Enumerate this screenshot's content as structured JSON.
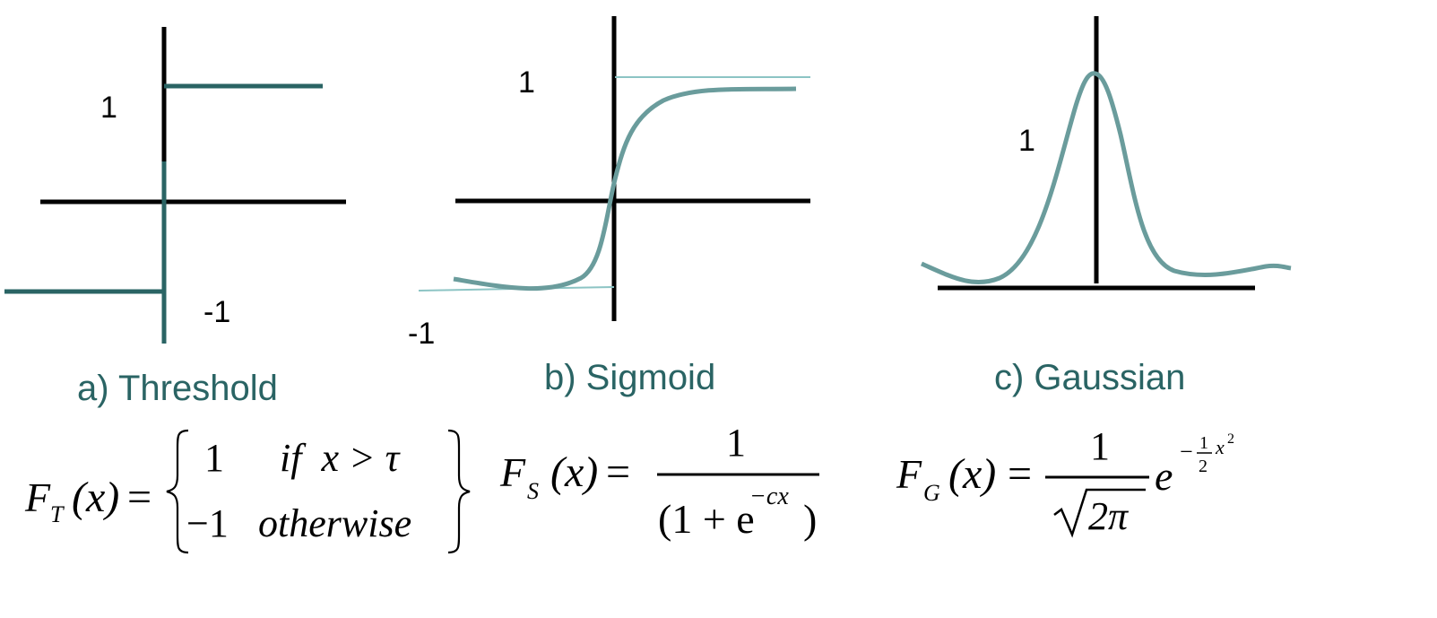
{
  "colors": {
    "axis": "#000000",
    "threshold_curve": "#2a6464",
    "sigmoid_curve": "#6a9c9c",
    "sigmoid_asymptote": "#8cc4c4",
    "gaussian_curve": "#6a9c9c",
    "caption": "#2a6464"
  },
  "panels": [
    {
      "id": "threshold",
      "caption": "a) Threshold",
      "upper_label": "1",
      "lower_label": "-1",
      "formula": {
        "lhs_func": "F",
        "lhs_sub": "T",
        "lhs_arg": "(x)",
        "equals": "=",
        "case1_value": "1",
        "case1_condition": "if  x > τ",
        "case2_value": "−1",
        "case2_condition": "otherwise"
      }
    },
    {
      "id": "sigmoid",
      "caption": "b) Sigmoid",
      "upper_label": "1",
      "lower_label": "-1",
      "formula": {
        "lhs_func": "F",
        "lhs_sub": "S",
        "lhs_arg": "(x)",
        "equals": "=",
        "numerator": "1",
        "denominator": "(1 + e",
        "denominator_exp": "−cx",
        "denominator_close": ")"
      }
    },
    {
      "id": "gaussian",
      "caption": "c) Gaussian",
      "peak_label": "1",
      "formula": {
        "lhs_func": "F",
        "lhs_sub": "G",
        "lhs_arg": "(x)",
        "equals": "=",
        "numerator": "1",
        "sqrt_content": "2π",
        "exp_base": "e",
        "exp_sign": "−",
        "exp_frac_num": "1",
        "exp_frac_den": "2",
        "exp_var": "x",
        "exp_power": "2"
      }
    }
  ]
}
